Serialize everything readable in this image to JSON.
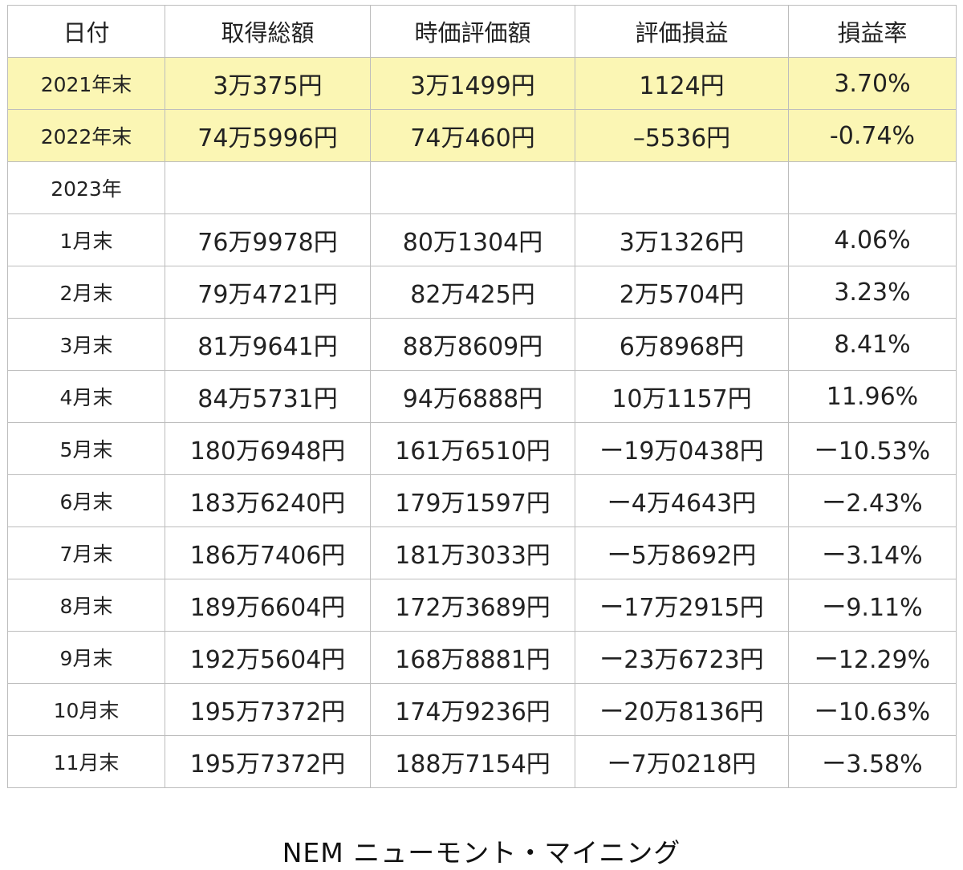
{
  "table": {
    "headers": [
      "日付",
      "取得総額",
      "時価評価額",
      "評価損益",
      "損益率"
    ],
    "rows": [
      {
        "date": "2021年末",
        "cost": "3万375円",
        "market": "3万1499円",
        "pl": "1124円",
        "rate": "3.70%",
        "sign": "pos",
        "highlight": true
      },
      {
        "date": "2022年末",
        "cost": "74万5996円",
        "market": "74万460円",
        "pl": "–5536円",
        "rate": "-0.74%",
        "sign": "neg",
        "highlight": true
      },
      {
        "date": "2023年",
        "cost": "",
        "market": "",
        "pl": "",
        "rate": "",
        "sign": "none",
        "highlight": false
      },
      {
        "date": "1月末",
        "cost": "76万9978円",
        "market": "80万1304円",
        "pl": "3万1326円",
        "rate": "4.06%",
        "sign": "pos",
        "highlight": false
      },
      {
        "date": "2月末",
        "cost": "79万4721円",
        "market": "82万425円",
        "pl": "2万5704円",
        "rate": "3.23%",
        "sign": "pos",
        "highlight": false
      },
      {
        "date": "3月末",
        "cost": "81万9641円",
        "market": "88万8609円",
        "pl": "6万8968円",
        "rate": "8.41%",
        "sign": "pos",
        "highlight": false
      },
      {
        "date": "4月末",
        "cost": "84万5731円",
        "market": "94万6888円",
        "pl": "10万1157円",
        "rate": "11.96%",
        "sign": "pos",
        "highlight": false
      },
      {
        "date": "5月末",
        "cost": "180万6948円",
        "market": "161万6510円",
        "pl": "ー19万0438円",
        "rate": "ー10.53%",
        "sign": "neg",
        "highlight": false
      },
      {
        "date": "6月末",
        "cost": "183万6240円",
        "market": "179万1597円",
        "pl": "ー4万4643円",
        "rate": "ー2.43%",
        "sign": "neg",
        "highlight": false
      },
      {
        "date": "7月末",
        "cost": "186万7406円",
        "market": "181万3033円",
        "pl": "ー5万8692円",
        "rate": "ー3.14%",
        "sign": "neg",
        "highlight": false
      },
      {
        "date": "8月末",
        "cost": "189万6604円",
        "market": "172万3689円",
        "pl": "ー17万2915円",
        "rate": "ー9.11%",
        "sign": "neg",
        "highlight": false
      },
      {
        "date": "9月末",
        "cost": "192万5604円",
        "market": "168万8881円",
        "pl": "ー23万6723円",
        "rate": "ー12.29%",
        "sign": "neg",
        "highlight": false
      },
      {
        "date": "10月末",
        "cost": "195万7372円",
        "market": "174万9236円",
        "pl": "ー20万8136円",
        "rate": "ー10.63%",
        "sign": "neg",
        "highlight": false
      },
      {
        "date": "11月末",
        "cost": "195万7372円",
        "market": "188万7154円",
        "pl": "ー7万0218円",
        "rate": "ー3.58%",
        "sign": "neg",
        "highlight": false
      }
    ]
  },
  "colors": {
    "positive": "#c6492f",
    "negative": "#3a78a8",
    "highlight_background": "#fbf6b4"
  },
  "caption": "NEM ニューモント・マイニング"
}
